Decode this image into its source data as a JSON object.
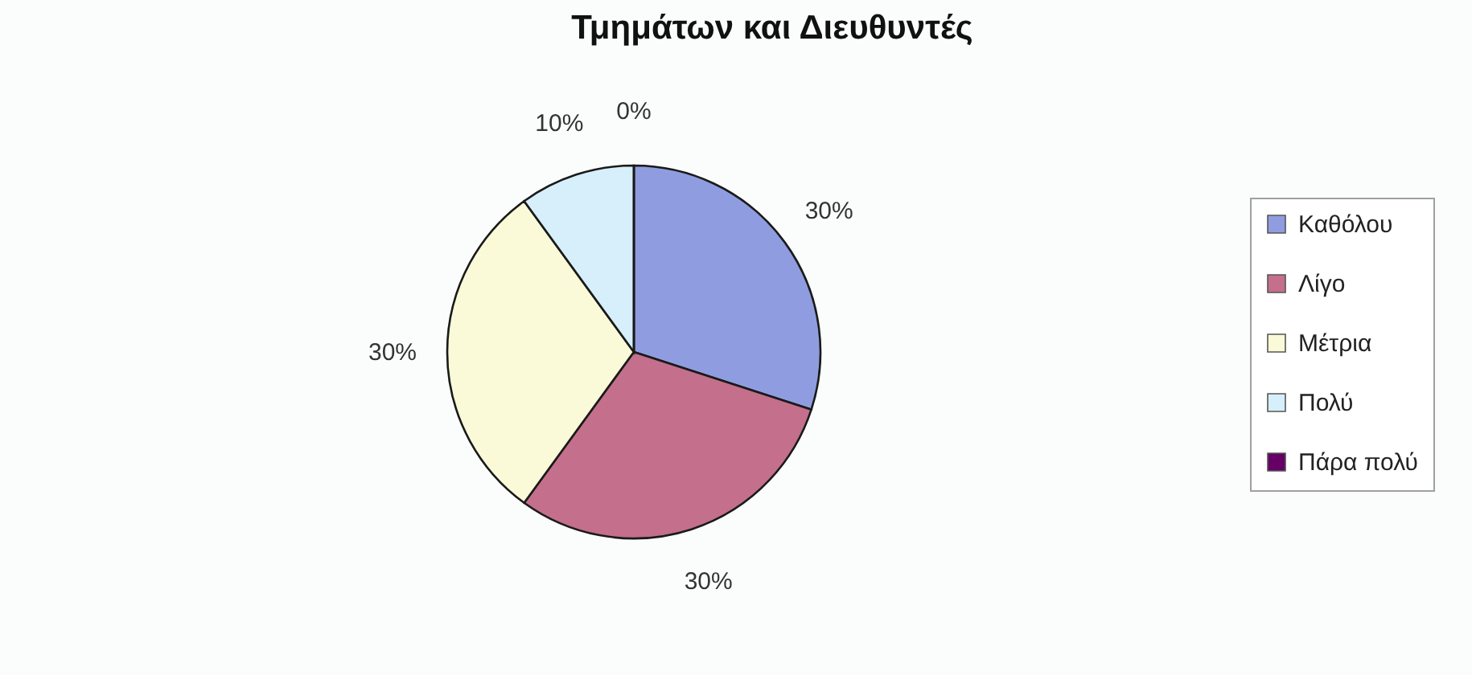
{
  "chart_data": {
    "type": "pie",
    "title": "Τμημάτων και Διευθυντές",
    "categories": [
      "Καθόλου",
      "Λίγο",
      "Μέτρια",
      "Πολύ",
      "Πάρα πολύ"
    ],
    "values": [
      30,
      30,
      30,
      10,
      0
    ],
    "colors": [
      "#8f9de0",
      "#c46f8c",
      "#fafad8",
      "#d6effb",
      "#660066"
    ],
    "value_labels": [
      "30%",
      "30%",
      "30%",
      "10%",
      "0%"
    ],
    "legend": "right"
  }
}
